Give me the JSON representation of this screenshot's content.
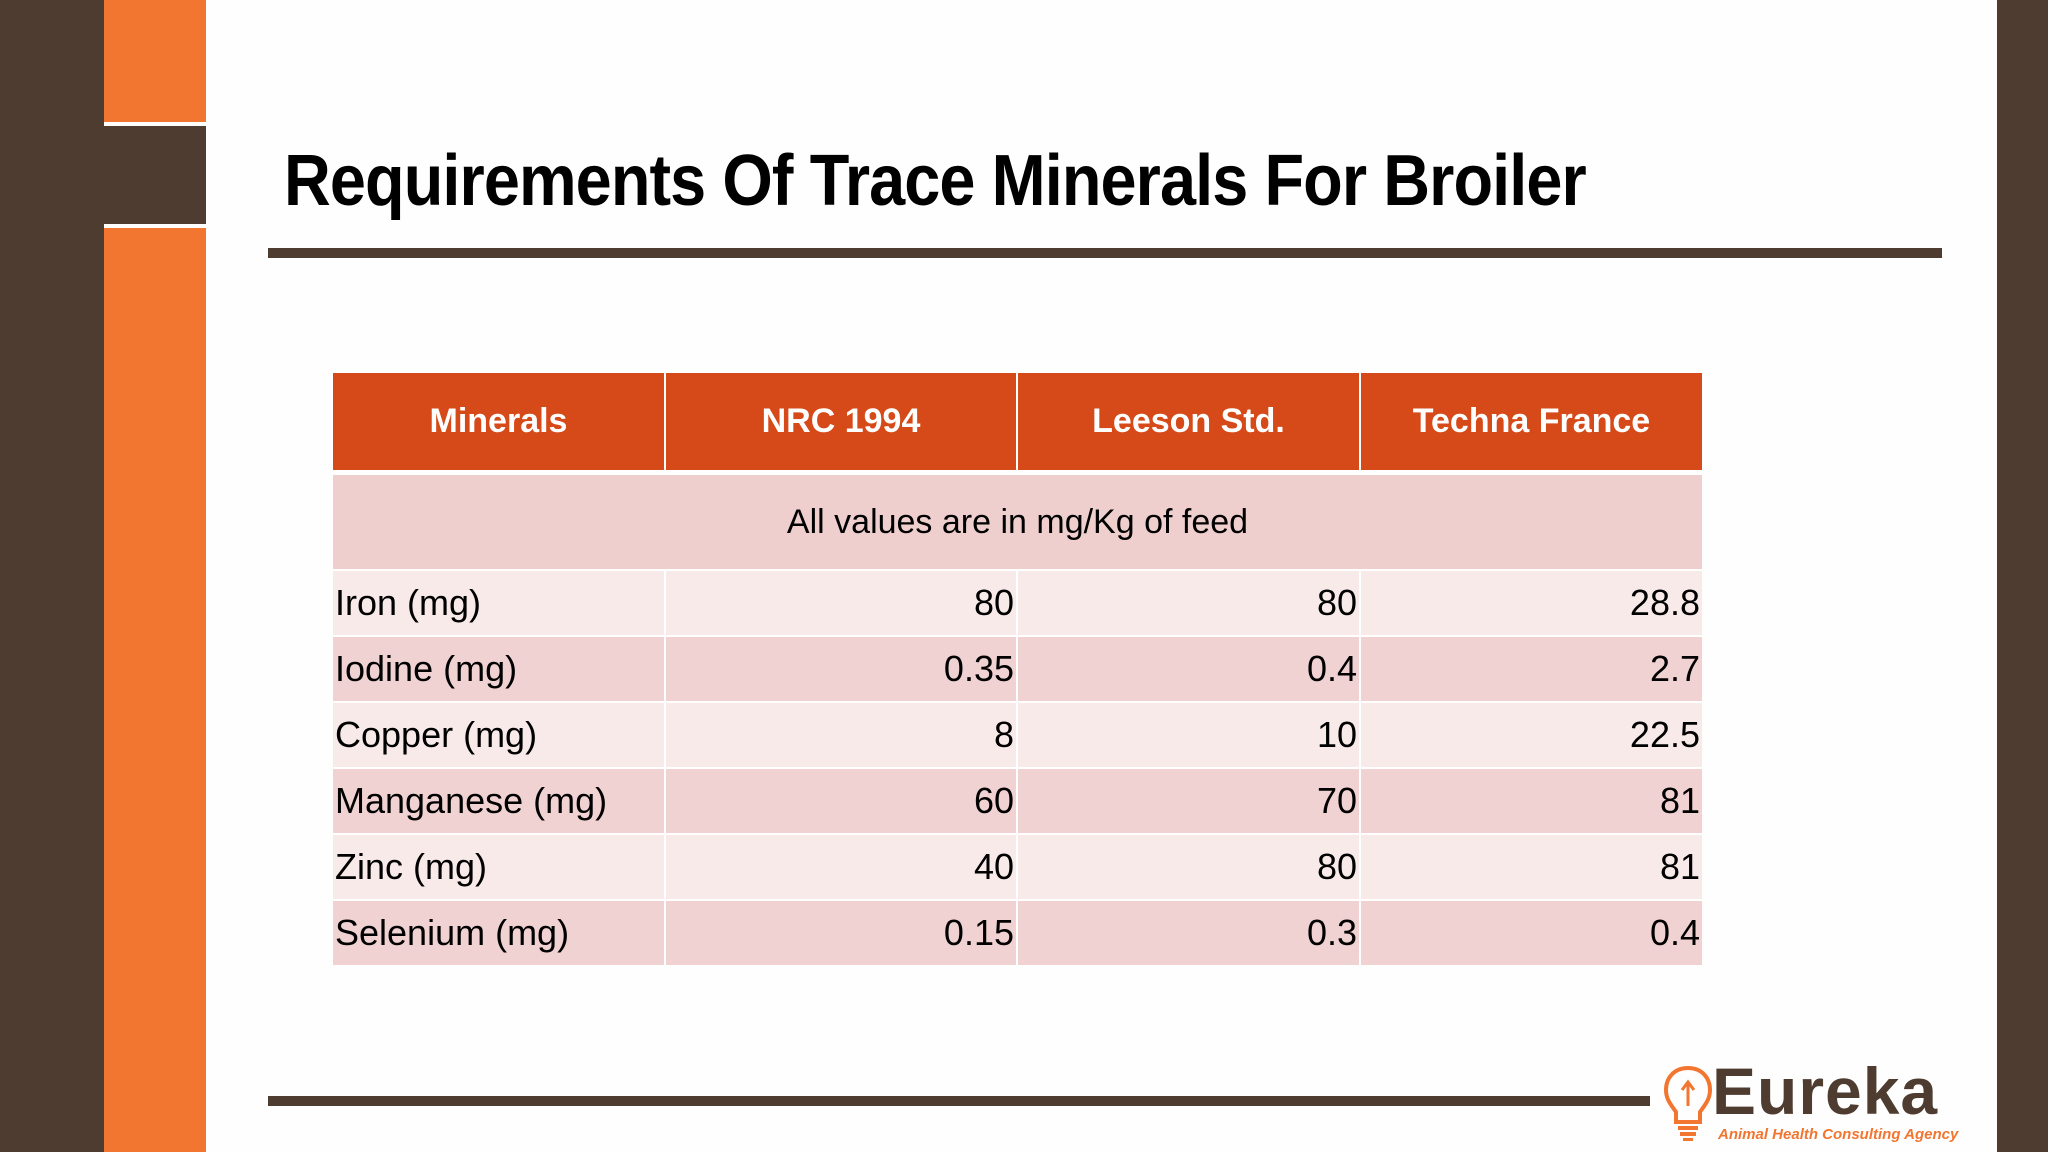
{
  "slide": {
    "title": "Requirements Of Trace Minerals For Broiler"
  },
  "table": {
    "headers": [
      "Minerals",
      "NRC 1994",
      "Leeson Std.",
      "Techna France"
    ],
    "note": "All values are in mg/Kg of feed",
    "rows": [
      [
        "Iron (mg)",
        "80",
        "80",
        "28.8"
      ],
      [
        "Iodine (mg)",
        "0.35",
        "0.4",
        "2.7"
      ],
      [
        "Copper (mg)",
        "8",
        "10",
        "22.5"
      ],
      [
        "Manganese (mg)",
        "60",
        "70",
        "81"
      ],
      [
        "Zinc (mg)",
        "40",
        "80",
        "81"
      ],
      [
        "Selenium (mg)",
        "0.15",
        "0.3",
        "0.4"
      ]
    ]
  },
  "logo": {
    "name": "Eureka",
    "tagline": "Animal Health Consulting Agency",
    "icon": "lightbulb-head-icon"
  },
  "colors": {
    "accent_orange": "#F27530",
    "dark_brown": "#4F3C31",
    "header_red": "#D64918",
    "row_light": "#F8EAE9",
    "row_dark": "#EFD2D1"
  }
}
